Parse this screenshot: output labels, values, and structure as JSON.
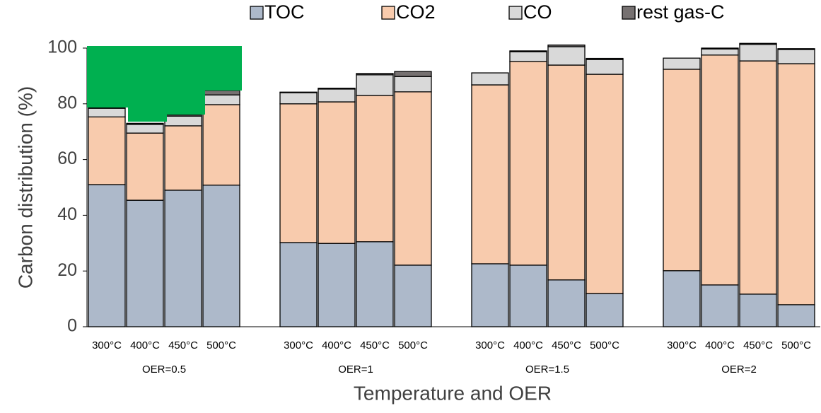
{
  "chart_data": {
    "type": "stacked_bar",
    "y_label": "Carbon distribution (%)",
    "x_label": "Temperature and OER",
    "categories": [
      "300°C",
      "400°C",
      "450°C",
      "500°C",
      "300°C",
      "400°C",
      "450°C",
      "500°C",
      "300°C",
      "400°C",
      "450°C",
      "500°C",
      "300°C",
      "400°C",
      "450°C",
      "500°C"
    ],
    "group_labels": [
      "OER=0.5",
      "OER=1",
      "OER=1.5",
      "OER=2"
    ],
    "series": [
      {
        "name": "TOC",
        "color": "#adb9ca",
        "values": [
          51.0,
          45.4,
          49.0,
          50.8,
          30.2,
          29.9,
          30.5,
          22.1,
          22.6,
          22.1,
          16.8,
          11.9,
          20.1,
          15.0,
          11.7,
          7.9
        ]
      },
      {
        "name": "CO2",
        "color": "#f8cbad",
        "values": [
          24.3,
          24.1,
          23.1,
          28.9,
          49.8,
          50.8,
          52.5,
          62.2,
          64.2,
          73.1,
          77.1,
          78.7,
          72.3,
          82.5,
          83.7,
          86.5
        ]
      },
      {
        "name": "CO",
        "color": "#d9d9d9",
        "values": [
          3.1,
          3.1,
          3.5,
          3.5,
          4.0,
          4.6,
          7.4,
          5.5,
          4.3,
          3.5,
          6.6,
          5.3,
          4.0,
          2.2,
          5.9,
          5.1
        ]
      },
      {
        "name": "rest gas-C",
        "color": "#767171",
        "values": [
          0.3,
          0.4,
          0.5,
          1.6,
          0.2,
          0.3,
          0.5,
          1.8,
          0,
          0.3,
          0.6,
          0.4,
          0,
          0.3,
          0.4,
          0.3
        ]
      }
    ],
    "ylim": [
      0,
      100
    ],
    "yticks": [
      0,
      20,
      40,
      60,
      80,
      100
    ]
  }
}
